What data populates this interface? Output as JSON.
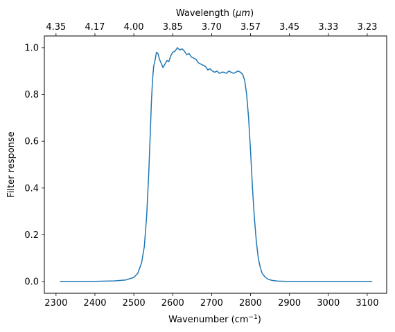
{
  "chart_data": {
    "type": "line",
    "xlabel": "Wavenumber (cm",
    "xlabel_superscript": "−1",
    "xlabel_close": ")",
    "ylabel": "Filter response",
    "top_xlabel": "Wavelength (",
    "top_xlabel_unit": "μm",
    "top_xlabel_close": ")",
    "xlim": [
      2270,
      3150
    ],
    "ylim": [
      -0.05,
      1.05
    ],
    "x_ticks": [
      2300,
      2400,
      2500,
      2600,
      2700,
      2800,
      2900,
      3000,
      3100
    ],
    "y_ticks": [
      0.0,
      0.2,
      0.4,
      0.6,
      0.8,
      1.0
    ],
    "y_tick_labels": [
      "0.0",
      "0.2",
      "0.4",
      "0.6",
      "0.8",
      "1.0"
    ],
    "top_x_ticks": [
      "4.35",
      "4.17",
      "4.00",
      "3.85",
      "3.70",
      "3.57",
      "3.45",
      "3.33",
      "3.23"
    ],
    "grid": false,
    "line_color": "#1f77b4",
    "series": [
      {
        "x": [
          2310,
          2350,
          2400,
          2450,
          2480,
          2500,
          2510,
          2520,
          2527,
          2533,
          2538,
          2542,
          2545,
          2548,
          2551,
          2555,
          2558,
          2562,
          2566,
          2570,
          2575,
          2580,
          2585,
          2590,
          2595,
          2600,
          2606,
          2612,
          2618,
          2624,
          2630,
          2636,
          2642,
          2648,
          2654,
          2660,
          2666,
          2672,
          2678,
          2684,
          2690,
          2696,
          2702,
          2708,
          2714,
          2720,
          2726,
          2732,
          2738,
          2744,
          2750,
          2756,
          2762,
          2768,
          2774,
          2780,
          2785,
          2790,
          2795,
          2800,
          2805,
          2810,
          2815,
          2820,
          2825,
          2830,
          2837,
          2845,
          2855,
          2870,
          2890,
          2920,
          2960,
          3000,
          3050,
          3113
        ],
        "y": [
          0.0,
          0.0,
          0.001,
          0.003,
          0.007,
          0.018,
          0.035,
          0.08,
          0.15,
          0.28,
          0.45,
          0.62,
          0.76,
          0.86,
          0.92,
          0.95,
          0.98,
          0.975,
          0.95,
          0.935,
          0.915,
          0.93,
          0.945,
          0.94,
          0.965,
          0.98,
          0.985,
          1.0,
          0.99,
          0.995,
          0.985,
          0.97,
          0.975,
          0.96,
          0.955,
          0.95,
          0.935,
          0.93,
          0.925,
          0.92,
          0.905,
          0.91,
          0.9,
          0.895,
          0.9,
          0.89,
          0.895,
          0.895,
          0.89,
          0.9,
          0.895,
          0.89,
          0.895,
          0.9,
          0.895,
          0.885,
          0.86,
          0.8,
          0.7,
          0.56,
          0.4,
          0.27,
          0.17,
          0.1,
          0.06,
          0.035,
          0.02,
          0.01,
          0.005,
          0.002,
          0.001,
          0.0,
          0.0,
          0.0,
          0.0,
          0.0
        ]
      }
    ]
  }
}
